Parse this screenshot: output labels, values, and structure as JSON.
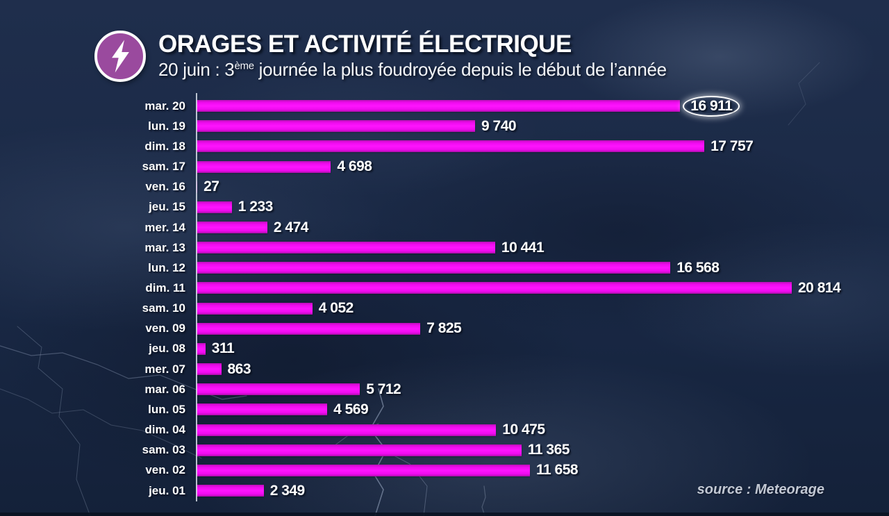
{
  "header": {
    "title": "ORAGES ET ACTIVITÉ ÉLECTRIQUE",
    "subtitle": {
      "prefix": "20 juin : 3",
      "superscript": "ème",
      "suffix": " journée la plus foudroyée depuis le début de l’année"
    },
    "badge_icon": "lightning-bolt",
    "badge_color": "#9a4a9e"
  },
  "chart_data": {
    "type": "bar",
    "orientation": "horizontal",
    "title": "ORAGES ET ACTIVITÉ ÉLECTRIQUE",
    "subtitle": "20 juin : 3ème journée la plus foudroyée depuis le début de l’année",
    "xlabel": "",
    "ylabel": "",
    "grid": false,
    "legend": false,
    "xlim": [
      0,
      20814
    ],
    "bar_color": "#f50df5",
    "highlighted_index": 0,
    "highlight_style": "white-ellipse-outline",
    "categories": [
      "mar. 20",
      "lun. 19",
      "dim. 18",
      "sam. 17",
      "ven. 16",
      "jeu. 15",
      "mer. 14",
      "mar. 13",
      "lun. 12",
      "dim. 11",
      "sam. 10",
      "ven. 09",
      "jeu. 08",
      "mer. 07",
      "mar. 06",
      "lun. 05",
      "dim. 04",
      "sam. 03",
      "ven. 02",
      "jeu. 01"
    ],
    "values": [
      16911,
      9740,
      17757,
      4698,
      27,
      1233,
      2474,
      10441,
      16568,
      20814,
      4052,
      7825,
      311,
      863,
      5712,
      4569,
      10475,
      11365,
      11658,
      2349
    ],
    "value_labels": [
      "16 911",
      "9 740",
      "17 757",
      "4 698",
      "27",
      "1 233",
      "2 474",
      "10 441",
      "16 568",
      "20 814",
      "4 052",
      "7 825",
      "311",
      "863",
      "5 712",
      "4 569",
      "10 475",
      "11 365",
      "11 658",
      "2 349"
    ]
  },
  "footer": {
    "source": "source : Meteorage"
  }
}
